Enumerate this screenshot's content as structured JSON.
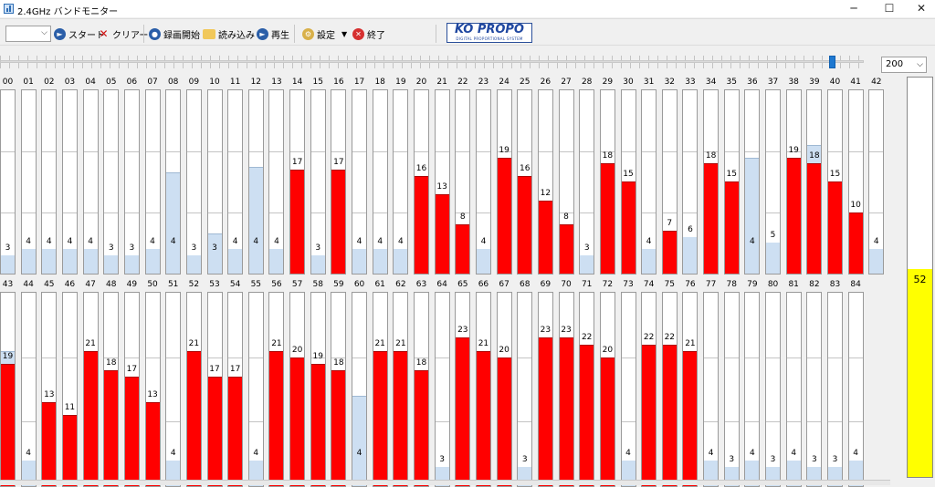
{
  "window": {
    "title": "2.4GHz バンドモニター",
    "minimize": "─",
    "maximize": "☐",
    "close": "✕"
  },
  "toolbar": {
    "combo_value": "",
    "start_label": "スタート",
    "clear_label": "クリアー",
    "record_label": "録画開始",
    "load_label": "読み込み",
    "play_label": "再生",
    "settings_label": "設定",
    "exit_label": "終了"
  },
  "logo": {
    "main": "KO PROPO",
    "sub": "DIGITAL PROPORTIONAL SYSTEM"
  },
  "zoom": {
    "value": "200"
  },
  "meter": {
    "value": "52",
    "level_percent": 52
  },
  "colors": {
    "signal": "#ff0000",
    "peak_hold": "#cddff2",
    "meter": "#ffff00"
  },
  "channels_row1": [
    {
      "ch": "00",
      "v": "3",
      "val": 3,
      "peak": 3,
      "bar": "blue"
    },
    {
      "ch": "01",
      "v": "4",
      "val": 4,
      "peak": 4,
      "bar": "blue"
    },
    {
      "ch": "02",
      "v": "4",
      "val": 4,
      "peak": 4,
      "bar": "blue"
    },
    {
      "ch": "03",
      "v": "4",
      "val": 4,
      "peak": 4,
      "bar": "blue"
    },
    {
      "ch": "04",
      "v": "4",
      "val": 4,
      "peak": 4,
      "bar": "blue"
    },
    {
      "ch": "05",
      "v": "3",
      "val": 3,
      "peak": 3,
      "bar": "blue"
    },
    {
      "ch": "06",
      "v": "3",
      "val": 3,
      "peak": 3,
      "bar": "blue"
    },
    {
      "ch": "07",
      "v": "4",
      "val": 4,
      "peak": 4,
      "bar": "blue"
    },
    {
      "ch": "08",
      "v": "4",
      "val": 4,
      "peak": 16.5,
      "bar": "blue"
    },
    {
      "ch": "09",
      "v": "3",
      "val": 3,
      "peak": 3,
      "bar": "blue"
    },
    {
      "ch": "10",
      "v": "3",
      "val": 3,
      "peak": 6.5,
      "bar": "blue"
    },
    {
      "ch": "11",
      "v": "4",
      "val": 4,
      "peak": 4,
      "bar": "blue"
    },
    {
      "ch": "12",
      "v": "4",
      "val": 4,
      "peak": 17.5,
      "bar": "blue"
    },
    {
      "ch": "13",
      "v": "4",
      "val": 4,
      "peak": 4,
      "bar": "blue"
    },
    {
      "ch": "14",
      "v": "17",
      "val": 17,
      "peak": 17,
      "bar": "red"
    },
    {
      "ch": "15",
      "v": "3",
      "val": 3,
      "peak": 3,
      "bar": "blue"
    },
    {
      "ch": "16",
      "v": "17",
      "val": 17,
      "peak": 17,
      "bar": "red"
    },
    {
      "ch": "17",
      "v": "4",
      "val": 4,
      "peak": 4,
      "bar": "blue"
    },
    {
      "ch": "18",
      "v": "4",
      "val": 4,
      "peak": 4,
      "bar": "blue"
    },
    {
      "ch": "19",
      "v": "4",
      "val": 4,
      "peak": 4,
      "bar": "blue"
    },
    {
      "ch": "20",
      "v": "16",
      "val": 16,
      "peak": 16,
      "bar": "red"
    },
    {
      "ch": "21",
      "v": "13",
      "val": 13,
      "peak": 13,
      "bar": "red"
    },
    {
      "ch": "22",
      "v": "8",
      "val": 8,
      "peak": 8,
      "bar": "red"
    },
    {
      "ch": "23",
      "v": "4",
      "val": 4,
      "peak": 4,
      "bar": "blue"
    },
    {
      "ch": "24",
      "v": "19",
      "val": 19,
      "peak": 19,
      "bar": "red"
    },
    {
      "ch": "25",
      "v": "16",
      "val": 16,
      "peak": 16,
      "bar": "red"
    },
    {
      "ch": "26",
      "v": "12",
      "val": 12,
      "peak": 12,
      "bar": "red"
    },
    {
      "ch": "27",
      "v": "8",
      "val": 8,
      "peak": 8,
      "bar": "red"
    },
    {
      "ch": "28",
      "v": "3",
      "val": 3,
      "peak": 3,
      "bar": "blue"
    },
    {
      "ch": "29",
      "v": "18",
      "val": 18,
      "peak": 18,
      "bar": "red"
    },
    {
      "ch": "30",
      "v": "15",
      "val": 15,
      "peak": 15,
      "bar": "red"
    },
    {
      "ch": "31",
      "v": "4",
      "val": 4,
      "peak": 4,
      "bar": "blue"
    },
    {
      "ch": "32",
      "v": "7",
      "val": 7,
      "peak": 7,
      "bar": "red"
    },
    {
      "ch": "33",
      "v": "6",
      "val": 6,
      "peak": 6,
      "bar": "blue"
    },
    {
      "ch": "34",
      "v": "18",
      "val": 18,
      "peak": 18,
      "bar": "red"
    },
    {
      "ch": "35",
      "v": "15",
      "val": 15,
      "peak": 15,
      "bar": "red"
    },
    {
      "ch": "36",
      "v": "4",
      "val": 4,
      "peak": 19,
      "bar": "blue"
    },
    {
      "ch": "37",
      "v": "5",
      "val": 5,
      "peak": 5,
      "bar": "blue"
    },
    {
      "ch": "38",
      "v": "19",
      "val": 19,
      "peak": 19,
      "bar": "red"
    },
    {
      "ch": "39",
      "v": "18",
      "val": 18,
      "peak": 21,
      "bar": "red"
    },
    {
      "ch": "40",
      "v": "15",
      "val": 15,
      "peak": 15,
      "bar": "red"
    },
    {
      "ch": "41",
      "v": "10",
      "val": 10,
      "peak": 10,
      "bar": "red"
    },
    {
      "ch": "42",
      "v": "4",
      "val": 4,
      "peak": 4,
      "bar": "blue"
    }
  ],
  "channels_row2": [
    {
      "ch": "43",
      "v": "19",
      "val": 19,
      "peak": 21,
      "bar": "red"
    },
    {
      "ch": "44",
      "v": "4",
      "val": 4,
      "peak": 4,
      "bar": "blue"
    },
    {
      "ch": "45",
      "v": "13",
      "val": 13,
      "peak": 13,
      "bar": "red"
    },
    {
      "ch": "46",
      "v": "11",
      "val": 11,
      "peak": 11,
      "bar": "red"
    },
    {
      "ch": "47",
      "v": "21",
      "val": 21,
      "peak": 21,
      "bar": "red"
    },
    {
      "ch": "48",
      "v": "18",
      "val": 18,
      "peak": 18,
      "bar": "red"
    },
    {
      "ch": "49",
      "v": "17",
      "val": 17,
      "peak": 17,
      "bar": "red"
    },
    {
      "ch": "50",
      "v": "13",
      "val": 13,
      "peak": 13,
      "bar": "red"
    },
    {
      "ch": "51",
      "v": "4",
      "val": 4,
      "peak": 4,
      "bar": "blue"
    },
    {
      "ch": "52",
      "v": "21",
      "val": 21,
      "peak": 21,
      "bar": "red"
    },
    {
      "ch": "53",
      "v": "17",
      "val": 17,
      "peak": 17,
      "bar": "red"
    },
    {
      "ch": "54",
      "v": "17",
      "val": 17,
      "peak": 17,
      "bar": "red"
    },
    {
      "ch": "55",
      "v": "4",
      "val": 4,
      "peak": 4,
      "bar": "blue"
    },
    {
      "ch": "56",
      "v": "21",
      "val": 21,
      "peak": 21,
      "bar": "red"
    },
    {
      "ch": "57",
      "v": "20",
      "val": 20,
      "peak": 20,
      "bar": "red"
    },
    {
      "ch": "58",
      "v": "19",
      "val": 19,
      "peak": 19,
      "bar": "red"
    },
    {
      "ch": "59",
      "v": "18",
      "val": 18,
      "peak": 18,
      "bar": "red"
    },
    {
      "ch": "60",
      "v": "4",
      "val": 4,
      "peak": 14,
      "bar": "blue"
    },
    {
      "ch": "61",
      "v": "21",
      "val": 21,
      "peak": 21,
      "bar": "red"
    },
    {
      "ch": "62",
      "v": "21",
      "val": 21,
      "peak": 21,
      "bar": "red"
    },
    {
      "ch": "63",
      "v": "18",
      "val": 18,
      "peak": 18,
      "bar": "red"
    },
    {
      "ch": "64",
      "v": "3",
      "val": 3,
      "peak": 3,
      "bar": "blue"
    },
    {
      "ch": "65",
      "v": "23",
      "val": 23,
      "peak": 23,
      "bar": "red"
    },
    {
      "ch": "66",
      "v": "21",
      "val": 21,
      "peak": 21,
      "bar": "red"
    },
    {
      "ch": "67",
      "v": "20",
      "val": 20,
      "peak": 20,
      "bar": "red"
    },
    {
      "ch": "68",
      "v": "3",
      "val": 3,
      "peak": 3,
      "bar": "blue"
    },
    {
      "ch": "69",
      "v": "23",
      "val": 23,
      "peak": 23,
      "bar": "red"
    },
    {
      "ch": "70",
      "v": "23",
      "val": 23,
      "peak": 23,
      "bar": "red"
    },
    {
      "ch": "71",
      "v": "22",
      "val": 22,
      "peak": 22,
      "bar": "red"
    },
    {
      "ch": "72",
      "v": "20",
      "val": 20,
      "peak": 20,
      "bar": "red"
    },
    {
      "ch": "73",
      "v": "4",
      "val": 4,
      "peak": 4,
      "bar": "blue"
    },
    {
      "ch": "74",
      "v": "22",
      "val": 22,
      "peak": 22,
      "bar": "red"
    },
    {
      "ch": "75",
      "v": "22",
      "val": 22,
      "peak": 22,
      "bar": "red"
    },
    {
      "ch": "76",
      "v": "21",
      "val": 21,
      "peak": 21,
      "bar": "red"
    },
    {
      "ch": "77",
      "v": "4",
      "val": 4,
      "peak": 4,
      "bar": "blue"
    },
    {
      "ch": "78",
      "v": "3",
      "val": 3,
      "peak": 3,
      "bar": "blue"
    },
    {
      "ch": "79",
      "v": "4",
      "val": 4,
      "peak": 4,
      "bar": "blue"
    },
    {
      "ch": "80",
      "v": "3",
      "val": 3,
      "peak": 3,
      "bar": "blue"
    },
    {
      "ch": "81",
      "v": "4",
      "val": 4,
      "peak": 4,
      "bar": "blue"
    },
    {
      "ch": "82",
      "v": "3",
      "val": 3,
      "peak": 3,
      "bar": "blue"
    },
    {
      "ch": "83",
      "v": "3",
      "val": 3,
      "peak": 3,
      "bar": "blue"
    },
    {
      "ch": "84",
      "v": "4",
      "val": 4,
      "peak": 4,
      "bar": "blue"
    }
  ]
}
